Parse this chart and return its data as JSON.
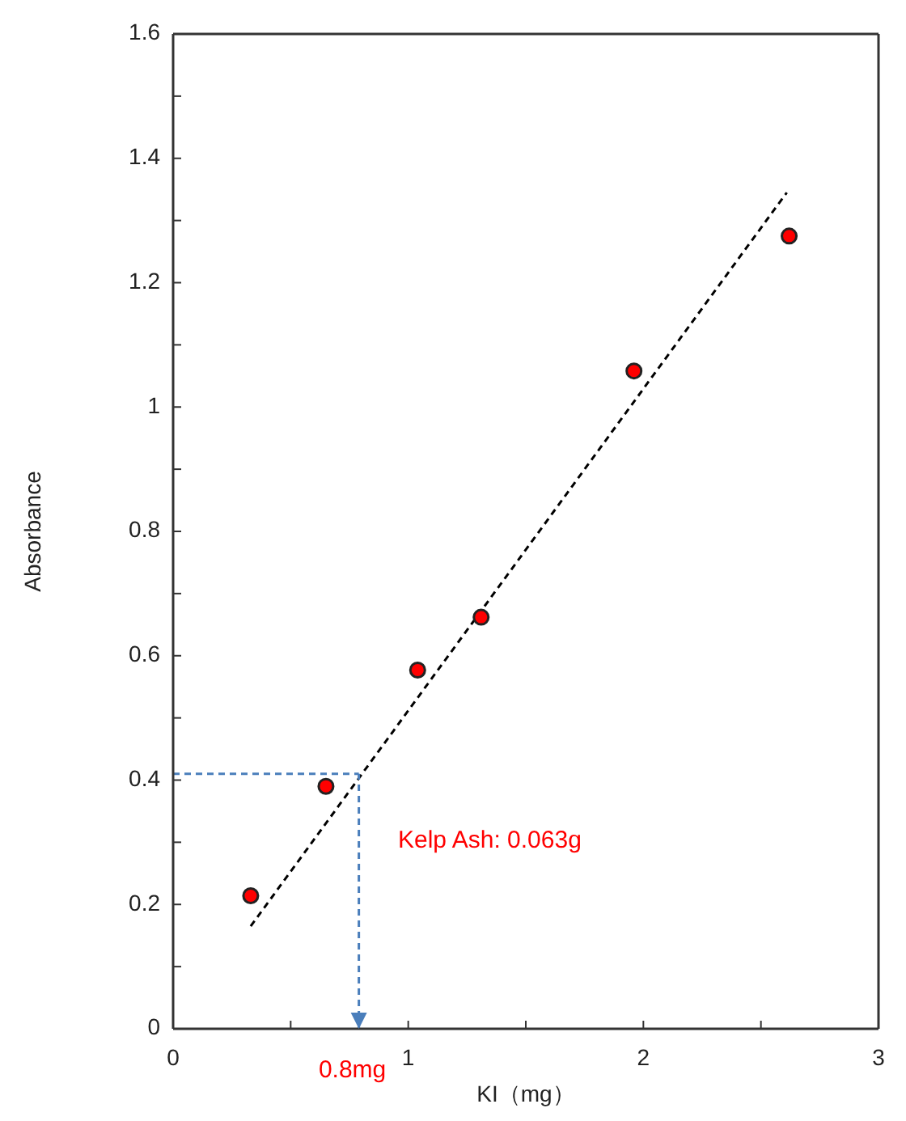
{
  "chart_data": {
    "type": "scatter",
    "xlabel": "KI（mg）",
    "ylabel": "Absorbance",
    "series": [
      {
        "marker": "circle",
        "color": "#ff0000",
        "x": [
          0.33,
          0.65,
          1.04,
          1.31,
          1.96,
          2.62
        ],
        "values": [
          0.214,
          0.39,
          0.577,
          0.662,
          1.058,
          1.275
        ]
      },
      {
        "type": "line",
        "marker": "none",
        "color": "#000000",
        "line_style": "dashed",
        "x": [
          0.33,
          2.61
        ],
        "values": [
          0.165,
          1.345
        ]
      }
    ],
    "xlim": [
      0,
      3
    ],
    "xticks": [
      0,
      {
        "value": 0.5,
        "label": null
      },
      1,
      {
        "value": 1.5,
        "label": null
      },
      2,
      {
        "value": 2.5,
        "label": null
      },
      3
    ],
    "ylim": [
      0,
      1.6
    ],
    "yticks": [
      0,
      {
        "value": 0.1,
        "label": null
      },
      0.2,
      {
        "value": 0.3,
        "label": null
      },
      0.4,
      {
        "value": 0.5,
        "label": null
      },
      0.6,
      {
        "value": 0.7,
        "label": null
      },
      0.8,
      {
        "value": 0.9,
        "label": null
      },
      1,
      {
        "value": 1.1,
        "label": null
      },
      1.2,
      {
        "value": 1.3,
        "label": null
      },
      1.4,
      {
        "value": 1.5,
        "label": null
      },
      1.6
    ],
    "ref_lines": [
      {
        "axis": "x",
        "value": 0.79,
        "label": "0.8mg",
        "color": "#4a7ebb",
        "line_style": "dashed"
      },
      {
        "axis": "y",
        "value": 0.41,
        "label": null,
        "color": "#4a7ebb",
        "line_style": "dashed"
      }
    ],
    "annotations": [
      "Kelp Ash: 0.063g"
    ]
  }
}
